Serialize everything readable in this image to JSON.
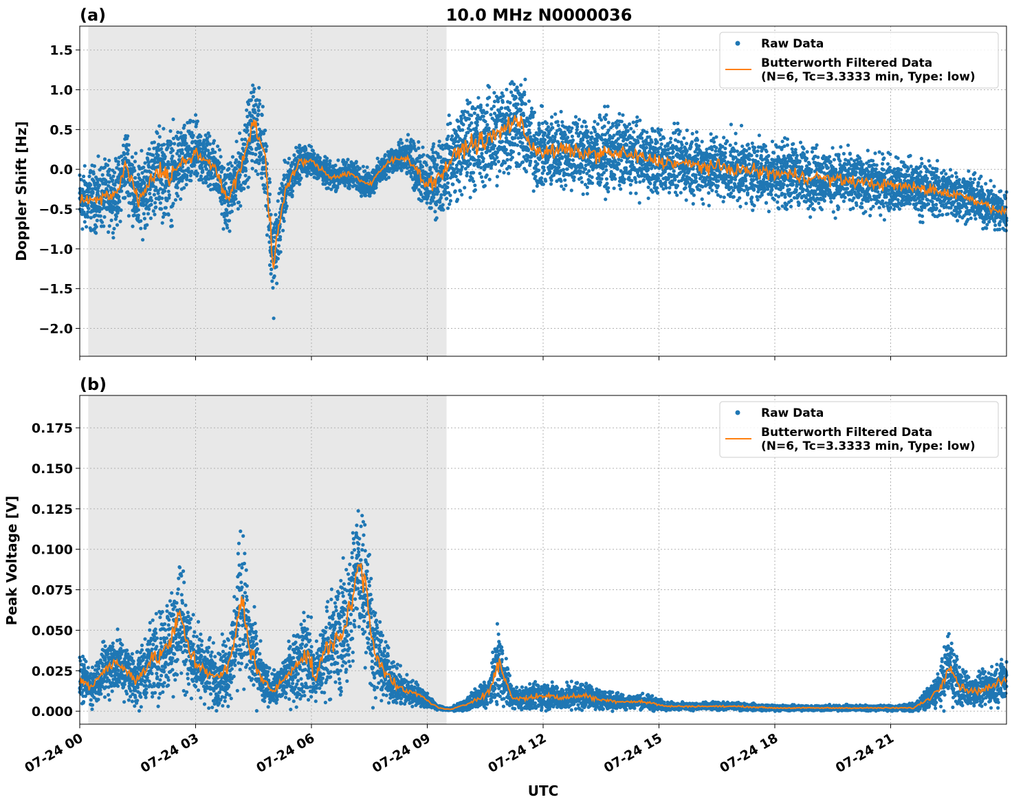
{
  "figure": {
    "title": "10.0 MHz N0000036",
    "xlabel": "UTC",
    "colors": {
      "raw": "#1f77b4",
      "filtered": "#ff7f0e",
      "shade": "#e8e8e8"
    }
  },
  "chart_data": [
    {
      "panel": "(a)",
      "type": "scatter",
      "title": "10.0 MHz N0000036",
      "ylabel": "Doppler Shift [Hz]",
      "xlabel": "",
      "xlim_hours": [
        0,
        24
      ],
      "ylim": [
        -2.35,
        1.8
      ],
      "yticks": [
        1.5,
        1.0,
        0.5,
        0.0,
        -0.5,
        -1.0,
        -1.5,
        -2.0
      ],
      "ytick_labels": [
        "1.5",
        "1.0",
        "0.5",
        "0.0",
        "−0.5",
        "−1.0",
        "−1.5",
        "−2.0"
      ],
      "shaded_span_hours": [
        0.22,
        9.5
      ],
      "grid": true,
      "legend": "top-right",
      "legend_entries": [
        "Raw Data",
        "Butterworth Filtered Data",
        "(N=6, Tc=3.3333 min, Type: low)"
      ],
      "series": [
        {
          "name": "Butterworth Filtered Data",
          "hours": [
            0.0,
            0.5,
            1.0,
            1.2,
            1.5,
            2.0,
            2.3,
            2.7,
            3.0,
            3.5,
            3.8,
            4.1,
            4.5,
            4.8,
            5.0,
            5.3,
            5.7,
            6.0,
            6.5,
            7.0,
            7.5,
            8.0,
            8.5,
            9.0,
            9.3,
            9.6,
            10.0,
            10.5,
            11.0,
            11.3,
            11.7,
            12.0,
            12.5,
            13.0,
            14.0,
            15.0,
            16.0,
            17.0,
            18.0,
            19.0,
            20.0,
            21.0,
            22.0,
            23.0,
            24.0
          ],
          "values": [
            -0.4,
            -0.35,
            -0.3,
            0.1,
            -0.4,
            0.0,
            -0.1,
            0.1,
            0.2,
            0.05,
            -0.4,
            -0.1,
            0.6,
            0.2,
            -1.2,
            -0.3,
            0.1,
            0.1,
            -0.1,
            -0.05,
            -0.2,
            0.1,
            0.15,
            -0.2,
            -0.1,
            0.1,
            0.3,
            0.35,
            0.5,
            0.65,
            0.3,
            0.2,
            0.25,
            0.2,
            0.2,
            0.1,
            0.05,
            0.0,
            -0.05,
            -0.1,
            -0.15,
            -0.2,
            -0.25,
            -0.35,
            -0.55
          ]
        },
        {
          "name": "Raw Data",
          "spread": [
            0.35,
            0.35,
            0.35,
            0.4,
            0.4,
            0.45,
            0.5,
            0.4,
            0.35,
            0.3,
            0.35,
            0.35,
            0.45,
            0.45,
            0.55,
            0.3,
            0.2,
            0.15,
            0.15,
            0.15,
            0.15,
            0.15,
            0.2,
            0.35,
            0.4,
            0.45,
            0.5,
            0.5,
            0.55,
            0.55,
            0.45,
            0.4,
            0.4,
            0.4,
            0.4,
            0.35,
            0.35,
            0.35,
            0.35,
            0.35,
            0.3,
            0.3,
            0.3,
            0.25,
            0.25
          ]
        }
      ]
    },
    {
      "panel": "(b)",
      "type": "scatter",
      "ylabel": "Peak Voltage [V]",
      "xlabel": "UTC",
      "xlim_hours": [
        0,
        24
      ],
      "ylim": [
        -0.008,
        0.195
      ],
      "yticks": [
        0.175,
        0.15,
        0.125,
        0.1,
        0.075,
        0.05,
        0.025,
        0.0
      ],
      "ytick_labels": [
        "0.175",
        "0.150",
        "0.125",
        "0.100",
        "0.075",
        "0.050",
        "0.025",
        "0.000"
      ],
      "xticks_hours": [
        0,
        3,
        6,
        9,
        12,
        15,
        18,
        21
      ],
      "xtick_labels": [
        "07-24 00",
        "07-24 03",
        "07-24 06",
        "07-24 09",
        "07-24 12",
        "07-24 15",
        "07-24 18",
        "07-24 21"
      ],
      "shaded_span_hours": [
        0.22,
        9.5
      ],
      "grid": true,
      "legend": "top-right",
      "legend_entries": [
        "Raw Data",
        "Butterworth Filtered Data",
        "(N=6, Tc=3.3333 min, Type: low)"
      ],
      "series": [
        {
          "name": "Butterworth Filtered Data",
          "hours": [
            0.0,
            0.3,
            0.6,
            0.9,
            1.2,
            1.5,
            1.8,
            2.1,
            2.4,
            2.6,
            2.8,
            3.0,
            3.3,
            3.6,
            3.9,
            4.2,
            4.4,
            4.7,
            5.0,
            5.3,
            5.6,
            5.9,
            6.1,
            6.4,
            6.7,
            7.0,
            7.2,
            7.4,
            7.6,
            7.9,
            8.2,
            8.5,
            8.8,
            9.1,
            9.3,
            9.6,
            10.0,
            10.3,
            10.6,
            10.85,
            11.2,
            11.6,
            12.0,
            12.5,
            13.0,
            13.5,
            14.0,
            14.5,
            14.8,
            15.2,
            16.0,
            17.0,
            18.0,
            19.0,
            20.0,
            21.0,
            21.6,
            22.0,
            22.3,
            22.5,
            22.8,
            23.2,
            23.6,
            24.0
          ],
          "values": [
            0.02,
            0.015,
            0.025,
            0.03,
            0.025,
            0.02,
            0.03,
            0.035,
            0.045,
            0.06,
            0.04,
            0.03,
            0.025,
            0.02,
            0.03,
            0.07,
            0.04,
            0.02,
            0.012,
            0.02,
            0.03,
            0.035,
            0.02,
            0.04,
            0.045,
            0.06,
            0.09,
            0.08,
            0.04,
            0.025,
            0.015,
            0.012,
            0.01,
            0.005,
            0.002,
            0.001,
            0.004,
            0.008,
            0.012,
            0.03,
            0.008,
            0.008,
            0.01,
            0.008,
            0.01,
            0.007,
            0.006,
            0.006,
            0.005,
            0.003,
            0.003,
            0.003,
            0.002,
            0.002,
            0.002,
            0.002,
            0.002,
            0.008,
            0.015,
            0.03,
            0.015,
            0.012,
            0.015,
            0.02
          ]
        },
        {
          "name": "Raw Data",
          "spread": [
            0.012,
            0.01,
            0.015,
            0.018,
            0.015,
            0.015,
            0.02,
            0.025,
            0.03,
            0.035,
            0.025,
            0.02,
            0.018,
            0.015,
            0.02,
            0.04,
            0.025,
            0.015,
            0.008,
            0.012,
            0.02,
            0.025,
            0.015,
            0.025,
            0.03,
            0.035,
            0.04,
            0.04,
            0.025,
            0.015,
            0.01,
            0.008,
            0.006,
            0.003,
            0.001,
            0.0008,
            0.003,
            0.006,
            0.008,
            0.02,
            0.006,
            0.006,
            0.008,
            0.006,
            0.008,
            0.005,
            0.004,
            0.004,
            0.004,
            0.002,
            0.002,
            0.002,
            0.0015,
            0.0015,
            0.0015,
            0.0015,
            0.002,
            0.006,
            0.01,
            0.02,
            0.01,
            0.008,
            0.01,
            0.012
          ]
        }
      ]
    }
  ]
}
